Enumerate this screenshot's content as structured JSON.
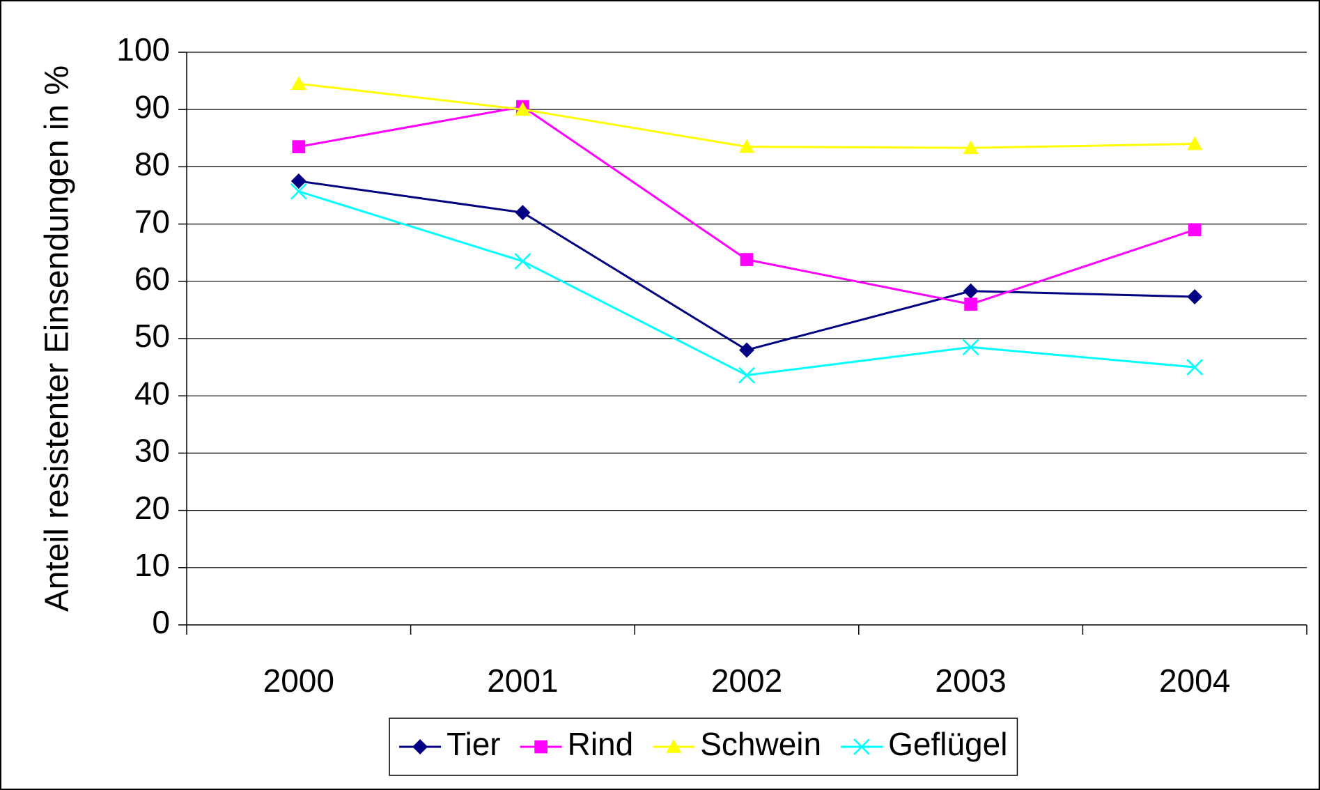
{
  "chart_data": {
    "type": "line",
    "y_label": "Anteil resistenter Einsendungen in %",
    "categories": [
      "2000",
      "2001",
      "2002",
      "2003",
      "2004"
    ],
    "series": [
      {
        "name": "Tier",
        "color": "#000080",
        "marker": "diamond",
        "values": [
          77.5,
          72,
          48,
          58.3,
          57.3
        ]
      },
      {
        "name": "Rind",
        "color": "#ff00ff",
        "marker": "square",
        "values": [
          83.5,
          90.5,
          63.8,
          56,
          69
        ]
      },
      {
        "name": "Schwein",
        "color": "#ffff00",
        "marker": "triangle",
        "values": [
          94.5,
          90,
          83.5,
          83.3,
          84
        ]
      },
      {
        "name": "Geflügel",
        "color": "#00ffff",
        "marker": "x",
        "values": [
          75.7,
          63.5,
          43.6,
          48.5,
          45
        ]
      }
    ],
    "ylim": [
      0,
      100
    ],
    "yticks": [
      0,
      10,
      20,
      30,
      40,
      50,
      60,
      70,
      80,
      90,
      100
    ],
    "grid": true,
    "legend": "bottom"
  }
}
